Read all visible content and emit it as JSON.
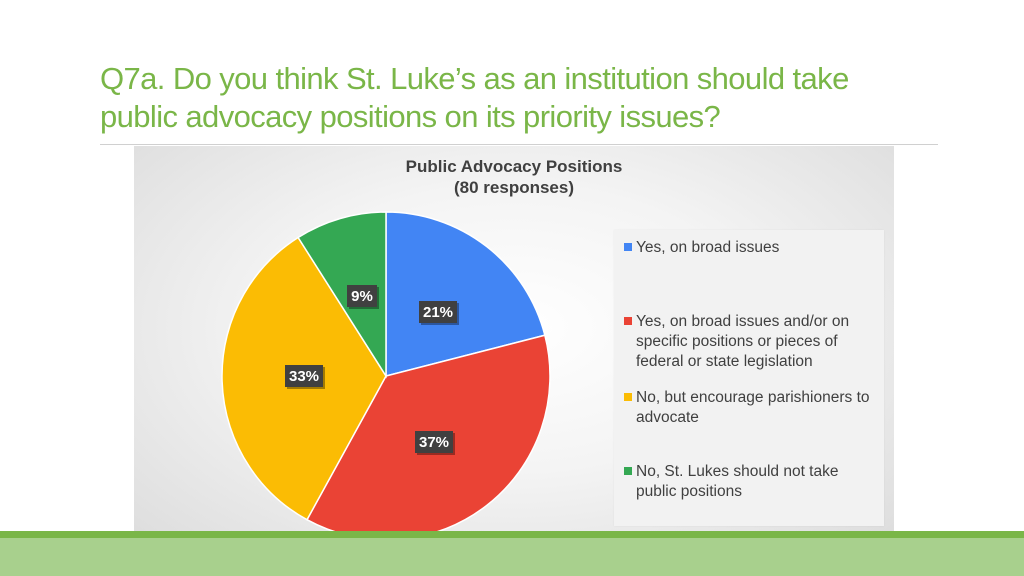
{
  "slide": {
    "title_line1": "Q7a. Do you think St. Luke’s as an institution should take",
    "title_line2": "public advocacy positions on its priority issues?",
    "accent_color": "#7ab648",
    "band_color": "#a8d08d"
  },
  "chart_data": {
    "type": "pie",
    "title": "Public Advocacy Positions",
    "subtitle": "(80 responses)",
    "legend_position": "right",
    "slices": [
      {
        "name": "Yes, on broad issues",
        "value": 21,
        "label": "21%",
        "color": "#4285f4"
      },
      {
        "name": "Yes, on broad issues and/or on specific positions or pieces of federal or state legislation",
        "value": 37,
        "label": "37%",
        "color": "#ea4335"
      },
      {
        "name": "No, but encourage parishioners to advocate",
        "value": 33,
        "label": "33%",
        "color": "#fbbc04"
      },
      {
        "name": "No, St. Lukes should not take public positions",
        "value": 9,
        "label": "9%",
        "color": "#34a853"
      }
    ]
  }
}
